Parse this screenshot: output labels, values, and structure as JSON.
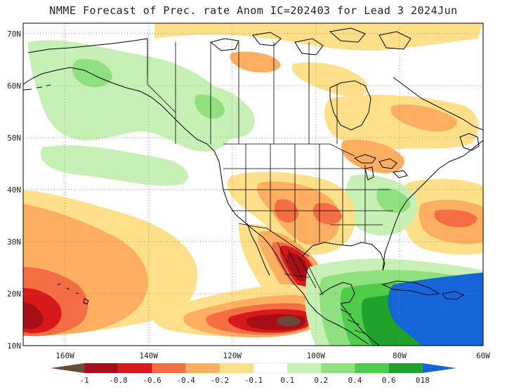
{
  "title": "NMME Forecast of Prec. rate Anom IC=202403 for Lead 3 2024Jun",
  "map": {
    "projection": "lat-lon",
    "lon_range": [
      -170,
      -60
    ],
    "lat_range": [
      10,
      72
    ],
    "lat_ticks": [
      {
        "value": 70,
        "label": "70N"
      },
      {
        "value": 60,
        "label": "60N"
      },
      {
        "value": 50,
        "label": "50N"
      },
      {
        "value": 40,
        "label": "40N"
      },
      {
        "value": 30,
        "label": "30N"
      },
      {
        "value": 20,
        "label": "20N"
      },
      {
        "value": 10,
        "label": "10N"
      }
    ],
    "lon_ticks": [
      {
        "value": -160,
        "label": "160W"
      },
      {
        "value": -140,
        "label": "140W"
      },
      {
        "value": -120,
        "label": "120W"
      },
      {
        "value": -100,
        "label": "100W"
      },
      {
        "value": -80,
        "label": "80W"
      },
      {
        "value": -60,
        "label": "60W"
      }
    ],
    "grid": "dotted",
    "anomaly_regions": [
      {
        "name": "Mexico dry core",
        "value": -0.8
      },
      {
        "name": "Eastern Pacific dry",
        "value": -0.6
      },
      {
        "name": "Central Pacific dry",
        "value": -0.6
      },
      {
        "name": "Southern Plains dry",
        "value": -0.4
      },
      {
        "name": "Great Lakes dry",
        "value": -0.2
      },
      {
        "name": "Western Atlantic dry",
        "value": -0.4
      },
      {
        "name": "Caribbean wet",
        "value": 0.6
      },
      {
        "name": "Gulf of Mexico wet",
        "value": 0.4
      },
      {
        "name": "Alaska wet",
        "value": 0.2
      },
      {
        "name": "Appalachians wet",
        "value": 0.2
      }
    ]
  },
  "colorbar": {
    "levels": [
      "-1",
      "-0.8",
      "-0.6",
      "-0.4",
      "-0.2",
      "-0.1",
      "0.1",
      "0.2",
      "0.4",
      "0.6",
      "0.8",
      "1"
    ],
    "colors": [
      "#6b4a3a",
      "#a50f15",
      "#d7191c",
      "#f46d43",
      "#fdae61",
      "#fee08b",
      "#ffffff",
      "#c7f0b4",
      "#8fe07f",
      "#4fcc4a",
      "#1fa32a",
      "#1565d8"
    ],
    "min_color": "#6b4a3a",
    "max_color": "#1565d8"
  },
  "colors": {
    "ocean": "#ffffff",
    "coastline": "#000000",
    "grid": "#888888"
  }
}
